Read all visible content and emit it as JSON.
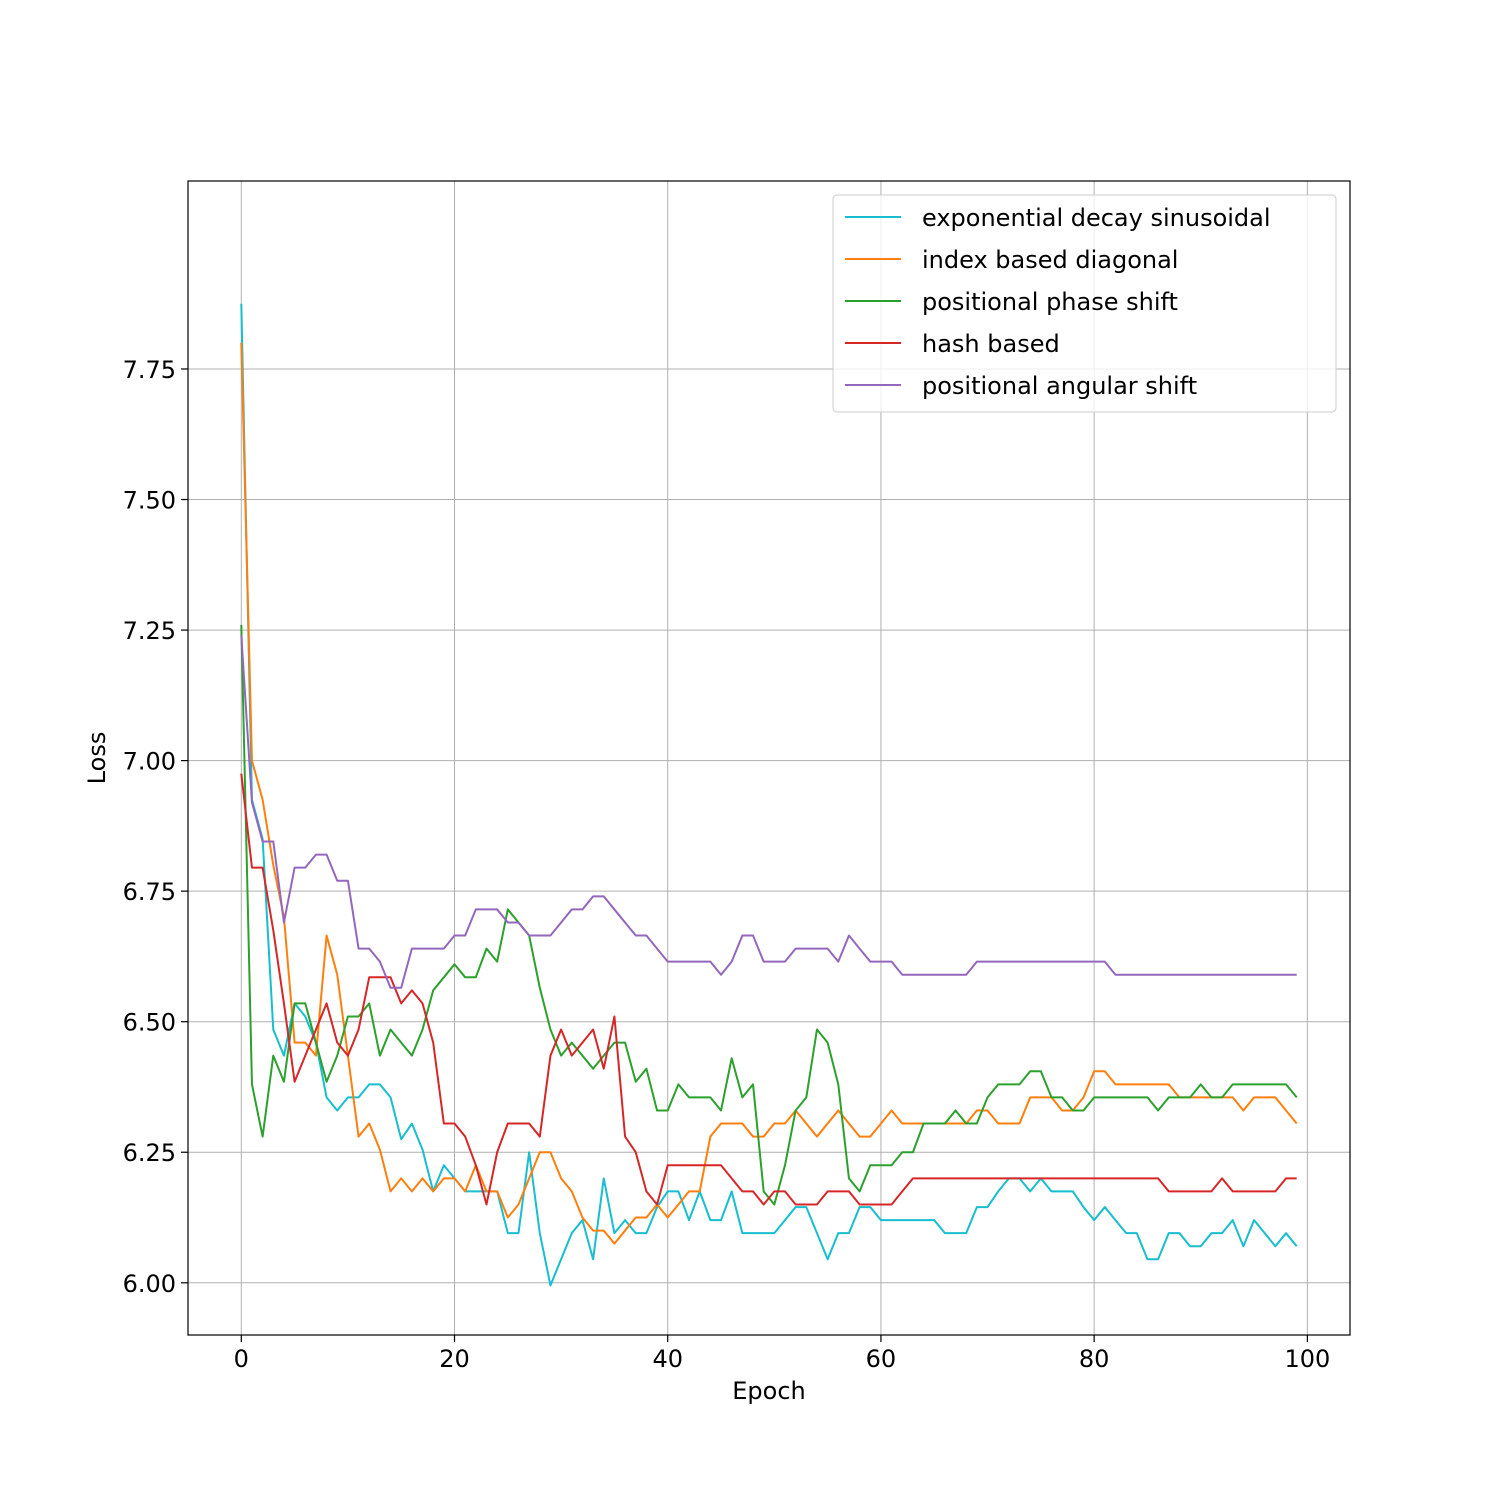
{
  "chart_data": {
    "type": "line",
    "title": "",
    "xlabel": "Epoch",
    "ylabel": "Loss",
    "xlim": [
      -5,
      104
    ],
    "ylim": [
      5.9,
      8.11
    ],
    "xticks": [
      0,
      20,
      40,
      60,
      80,
      100
    ],
    "xtick_labels": [
      "0",
      "20",
      "40",
      "60",
      "80",
      "100"
    ],
    "yticks": [
      6.0,
      6.25,
      6.5,
      6.75,
      7.0,
      7.25,
      7.5,
      7.75
    ],
    "ytick_labels": [
      "6.00",
      "6.25",
      "6.50",
      "6.75",
      "7.00",
      "7.25",
      "7.50",
      "7.75"
    ],
    "grid": true,
    "legend_position": "top-right",
    "series": [
      {
        "name": "exponential decay sinusoidal",
        "color": "#17becf",
        "values": [
          7.875,
          6.925,
          6.85,
          6.485,
          6.435,
          6.535,
          6.51,
          6.46,
          6.355,
          6.33,
          6.355,
          6.355,
          6.38,
          6.38,
          6.355,
          6.275,
          6.305,
          6.255,
          6.175,
          6.225,
          6.2,
          6.175,
          6.175,
          6.175,
          6.175,
          6.095,
          6.095,
          6.25,
          6.095,
          5.995,
          6.045,
          6.095,
          6.12,
          6.045,
          6.2,
          6.095,
          6.12,
          6.095,
          6.095,
          6.145,
          6.175,
          6.175,
          6.12,
          6.175,
          6.12,
          6.12,
          6.175,
          6.095,
          6.095,
          6.095,
          6.095,
          6.12,
          6.145,
          6.145,
          6.095,
          6.045,
          6.095,
          6.095,
          6.145,
          6.145,
          6.12,
          6.12,
          6.12,
          6.12,
          6.12,
          6.12,
          6.095,
          6.095,
          6.095,
          6.145,
          6.145,
          6.175,
          6.2,
          6.2,
          6.175,
          6.2,
          6.175,
          6.175,
          6.175,
          6.145,
          6.12,
          6.145,
          6.12,
          6.095,
          6.095,
          6.045,
          6.045,
          6.095,
          6.095,
          6.07,
          6.07,
          6.095,
          6.095,
          6.12,
          6.07,
          6.12,
          6.095,
          6.07,
          6.095,
          6.07
        ]
      },
      {
        "name": "index based diagonal",
        "color": "#ff7f0e",
        "values": [
          7.8,
          7.0,
          6.925,
          6.8,
          6.7,
          6.46,
          6.46,
          6.435,
          6.665,
          6.59,
          6.435,
          6.28,
          6.305,
          6.255,
          6.175,
          6.2,
          6.175,
          6.2,
          6.175,
          6.2,
          6.2,
          6.175,
          6.225,
          6.175,
          6.175,
          6.125,
          6.15,
          6.2,
          6.25,
          6.25,
          6.2,
          6.175,
          6.125,
          6.1,
          6.1,
          6.075,
          6.1,
          6.125,
          6.125,
          6.15,
          6.125,
          6.15,
          6.175,
          6.175,
          6.28,
          6.305,
          6.305,
          6.305,
          6.28,
          6.28,
          6.305,
          6.305,
          6.33,
          6.305,
          6.28,
          6.305,
          6.33,
          6.305,
          6.28,
          6.28,
          6.305,
          6.33,
          6.305,
          6.305,
          6.305,
          6.305,
          6.305,
          6.305,
          6.305,
          6.33,
          6.33,
          6.305,
          6.305,
          6.305,
          6.355,
          6.355,
          6.355,
          6.33,
          6.33,
          6.355,
          6.405,
          6.405,
          6.38,
          6.38,
          6.38,
          6.38,
          6.38,
          6.38,
          6.355,
          6.355,
          6.355,
          6.355,
          6.355,
          6.355,
          6.33,
          6.355,
          6.355,
          6.355,
          6.33,
          6.305
        ]
      },
      {
        "name": "positional phase shift",
        "color": "#2ca02c",
        "values": [
          7.26,
          6.38,
          6.28,
          6.435,
          6.385,
          6.535,
          6.535,
          6.46,
          6.385,
          6.435,
          6.51,
          6.51,
          6.535,
          6.435,
          6.485,
          6.46,
          6.435,
          6.485,
          6.56,
          6.585,
          6.61,
          6.585,
          6.585,
          6.64,
          6.615,
          6.715,
          6.69,
          6.665,
          6.565,
          6.485,
          6.435,
          6.46,
          6.435,
          6.41,
          6.435,
          6.46,
          6.46,
          6.385,
          6.41,
          6.33,
          6.33,
          6.38,
          6.355,
          6.355,
          6.355,
          6.33,
          6.43,
          6.355,
          6.38,
          6.175,
          6.15,
          6.225,
          6.33,
          6.355,
          6.485,
          6.46,
          6.38,
          6.2,
          6.175,
          6.225,
          6.225,
          6.225,
          6.25,
          6.25,
          6.305,
          6.305,
          6.305,
          6.33,
          6.305,
          6.305,
          6.355,
          6.38,
          6.38,
          6.38,
          6.405,
          6.405,
          6.355,
          6.355,
          6.33,
          6.33,
          6.355,
          6.355,
          6.355,
          6.355,
          6.355,
          6.355,
          6.33,
          6.355,
          6.355,
          6.355,
          6.38,
          6.355,
          6.355,
          6.38,
          6.38,
          6.38,
          6.38,
          6.38,
          6.38,
          6.355
        ]
      },
      {
        "name": "hash based",
        "color": "#d62728",
        "values": [
          6.975,
          6.795,
          6.795,
          6.675,
          6.535,
          6.385,
          6.435,
          6.485,
          6.535,
          6.46,
          6.435,
          6.485,
          6.585,
          6.585,
          6.585,
          6.535,
          6.56,
          6.535,
          6.46,
          6.305,
          6.305,
          6.28,
          6.225,
          6.15,
          6.25,
          6.305,
          6.305,
          6.305,
          6.28,
          6.435,
          6.485,
          6.435,
          6.46,
          6.485,
          6.41,
          6.51,
          6.28,
          6.25,
          6.175,
          6.15,
          6.225,
          6.225,
          6.225,
          6.225,
          6.225,
          6.225,
          6.2,
          6.175,
          6.175,
          6.15,
          6.175,
          6.175,
          6.15,
          6.15,
          6.15,
          6.175,
          6.175,
          6.175,
          6.15,
          6.15,
          6.15,
          6.15,
          6.175,
          6.2,
          6.2,
          6.2,
          6.2,
          6.2,
          6.2,
          6.2,
          6.2,
          6.2,
          6.2,
          6.2,
          6.2,
          6.2,
          6.2,
          6.2,
          6.2,
          6.2,
          6.2,
          6.2,
          6.2,
          6.2,
          6.2,
          6.2,
          6.2,
          6.175,
          6.175,
          6.175,
          6.175,
          6.175,
          6.2,
          6.175,
          6.175,
          6.175,
          6.175,
          6.175,
          6.2,
          6.2
        ]
      },
      {
        "name": "positional angular shift",
        "color": "#9467bd",
        "values": [
          7.24,
          6.92,
          6.845,
          6.845,
          6.69,
          6.795,
          6.795,
          6.82,
          6.82,
          6.77,
          6.77,
          6.64,
          6.64,
          6.615,
          6.565,
          6.565,
          6.64,
          6.64,
          6.64,
          6.64,
          6.665,
          6.665,
          6.715,
          6.715,
          6.715,
          6.69,
          6.69,
          6.665,
          6.665,
          6.665,
          6.69,
          6.715,
          6.715,
          6.74,
          6.74,
          6.715,
          6.69,
          6.665,
          6.665,
          6.64,
          6.615,
          6.615,
          6.615,
          6.615,
          6.615,
          6.59,
          6.615,
          6.665,
          6.665,
          6.615,
          6.615,
          6.615,
          6.64,
          6.64,
          6.64,
          6.64,
          6.615,
          6.665,
          6.64,
          6.615,
          6.615,
          6.615,
          6.59,
          6.59,
          6.59,
          6.59,
          6.59,
          6.59,
          6.59,
          6.615,
          6.615,
          6.615,
          6.615,
          6.615,
          6.615,
          6.615,
          6.615,
          6.615,
          6.615,
          6.615,
          6.615,
          6.615,
          6.59,
          6.59,
          6.59,
          6.59,
          6.59,
          6.59,
          6.59,
          6.59,
          6.59,
          6.59,
          6.59,
          6.59,
          6.59,
          6.59,
          6.59,
          6.59,
          6.59,
          6.59
        ]
      }
    ]
  }
}
